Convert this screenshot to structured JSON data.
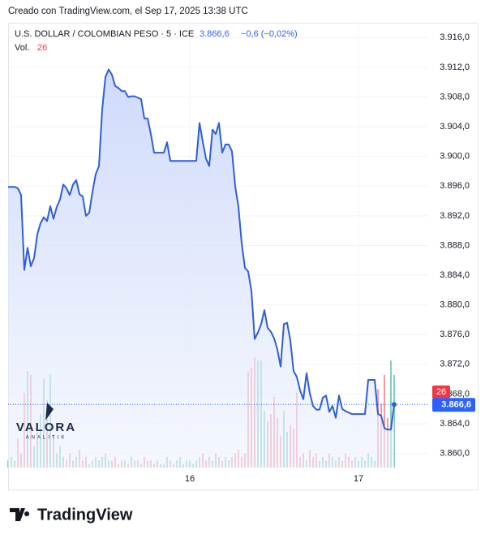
{
  "header": {
    "created": "Creado con TradingView.com, el Sep 17, 2025 13:38 UTC"
  },
  "chart_data": {
    "type": "area",
    "title": "U.S. DOLLAR / COLOMBIAN PESO · 5 · ICE",
    "change": "−0,6 (−0,02%)",
    "last_price": {
      "value": 3866.6,
      "label": "3.866,6"
    },
    "color": "#2f5fd8",
    "fill_color": "#dbe4fb",
    "ylim": [
      3858.1,
      3918.0
    ],
    "yticks": [
      {
        "value": 3860,
        "label": "3.860,0"
      },
      {
        "value": 3864,
        "label": "3.864,0"
      },
      {
        "value": 3868,
        "label": "3.868,0"
      },
      {
        "value": 3872,
        "label": "3.872,0"
      },
      {
        "value": 3876,
        "label": "3.876,0"
      },
      {
        "value": 3880,
        "label": "3.880,0"
      },
      {
        "value": 3884,
        "label": "3.884,0"
      },
      {
        "value": 3888,
        "label": "3.888,0"
      },
      {
        "value": 3892,
        "label": "3.892,0"
      },
      {
        "value": 3896,
        "label": "3.896,0"
      },
      {
        "value": 3900,
        "label": "3.900,0"
      },
      {
        "value": 3904,
        "label": "3.904,0"
      },
      {
        "value": 3908,
        "label": "3.908,0"
      },
      {
        "value": 3912,
        "label": "3.912,0"
      },
      {
        "value": 3916,
        "label": "3.916,0"
      }
    ],
    "grid": true,
    "categories": [
      null,
      null,
      null,
      null,
      null,
      null,
      null,
      null,
      null,
      null,
      null,
      null,
      null,
      null,
      null,
      null,
      null,
      null,
      null,
      null,
      null,
      null,
      null,
      null,
      null,
      null,
      null,
      null,
      null,
      null,
      null,
      null,
      null,
      null,
      null,
      null,
      null,
      null,
      null,
      null,
      null,
      null,
      null,
      null,
      null,
      null,
      null,
      null,
      null,
      null,
      null,
      null,
      null,
      null,
      null,
      null,
      "16",
      null,
      null,
      null,
      null,
      null,
      null,
      null,
      null,
      null,
      null,
      null,
      null,
      null,
      null,
      null,
      null,
      null,
      null,
      null,
      null,
      null,
      null,
      null,
      null,
      null,
      null,
      null,
      null,
      null,
      null,
      null,
      null,
      null,
      null,
      null,
      null,
      null,
      null,
      null,
      null,
      null,
      null,
      null,
      null,
      null,
      null,
      null,
      null,
      null,
      null,
      null,
      "17",
      null,
      null,
      null,
      null,
      null,
      null,
      null,
      null,
      null,
      null,
      null
    ],
    "values": [
      3895.9,
      3895.9,
      3895.9,
      3895.7,
      3894.8,
      3884.7,
      3887.7,
      3885.2,
      3886.3,
      3889.5,
      3891.0,
      3891.8,
      3891.3,
      3893.3,
      3891.6,
      3893.2,
      3894.2,
      3896.2,
      3895.7,
      3894.8,
      3896.2,
      3896.8,
      3894.9,
      3894.6,
      3892.0,
      3892.4,
      3895.2,
      3897.6,
      3898.7,
      3906.3,
      3910.7,
      3911.7,
      3911.0,
      3909.5,
      3909.2,
      3908.8,
      3908.8,
      3908.0,
      3908.1,
      3908.1,
      3907.9,
      3907.7,
      3905.1,
      3905.1,
      3903.0,
      3900.5,
      3900.5,
      3900.5,
      3900.5,
      3901.9,
      3899.4,
      3899.4,
      3899.4,
      3899.4,
      3899.4,
      3899.4,
      3899.4,
      3899.4,
      3899.4,
      3904.5,
      3902.0,
      3899.7,
      3898.7,
      3903.6,
      3903.0,
      3904.5,
      3900.5,
      3901.6,
      3901.6,
      3900.7,
      3896.0,
      3893.2,
      3888.3,
      3885.0,
      3884.5,
      3881.9,
      3875.4,
      3876.3,
      3877.4,
      3879.3,
      3876.9,
      3876.4,
      3875.5,
      3874.0,
      3871.7,
      3877.4,
      3877.6,
      3875.2,
      3871.1,
      3870.3,
      3868.5,
      3867.3,
      3870.8,
      3868.1,
      3866.4,
      3865.9,
      3865.9,
      3867.5,
      3867.8,
      3865.6,
      3866.4,
      3864.8,
      3867.8,
      3866.0,
      3865.7,
      3865.5,
      3865.3,
      3865.3,
      3865.3,
      3865.3,
      3865.3,
      3869.9,
      3869.9,
      3869.9,
      3865.3,
      3865.1,
      3863.4,
      3863.2,
      3863.2,
      3866.6
    ],
    "volume": {
      "name": "Vol.",
      "up_color": "#7fcfc0",
      "down_color": "#f59aa1",
      "values": [
        2,
        3,
        2,
        8,
        4,
        21,
        27,
        26,
        6,
        10,
        15,
        25,
        19,
        26,
        9,
        4,
        6,
        3,
        2,
        4,
        2,
        3,
        5,
        2,
        3,
        1,
        2,
        3,
        2,
        3,
        4,
        2,
        2,
        3,
        1,
        2,
        2,
        1,
        3,
        2,
        2,
        1,
        3,
        2,
        2,
        1,
        2,
        1,
        1,
        3,
        2,
        1,
        2,
        3,
        1,
        2,
        2,
        1,
        2,
        3,
        4,
        2,
        3,
        2,
        4,
        3,
        2,
        3,
        2,
        3,
        4,
        5,
        3,
        4,
        27,
        28,
        31,
        30,
        30,
        16,
        13,
        15,
        20,
        14,
        9,
        16,
        10,
        12,
        11,
        21,
        3,
        4,
        2,
        5,
        3,
        4,
        2,
        3,
        2,
        4,
        3,
        2,
        3,
        2,
        4,
        3,
        2,
        3,
        2,
        3,
        2,
        4,
        3,
        2,
        22,
        18,
        26,
        14,
        30,
        26
      ]
    }
  },
  "watermark": {
    "name": "VALORA",
    "sub": "ANALITIK"
  },
  "footer": {
    "brand": "TradingView"
  }
}
